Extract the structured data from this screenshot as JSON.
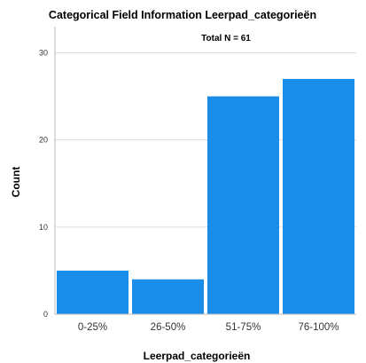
{
  "chart_data": {
    "type": "bar",
    "title": "Categorical Field Information Leerpad_categorieën",
    "annotation": "Total N = 61",
    "xlabel": "Leerpad_categorieën",
    "ylabel": "Count",
    "categories": [
      "0-25%",
      "26-50%",
      "51-75%",
      "76-100%"
    ],
    "values": [
      5,
      4,
      25,
      27
    ],
    "ylim": [
      0,
      33
    ],
    "yticks": [
      0,
      10,
      20,
      30
    ],
    "grid": "horizontal",
    "bar_color": "#1a8de8"
  }
}
